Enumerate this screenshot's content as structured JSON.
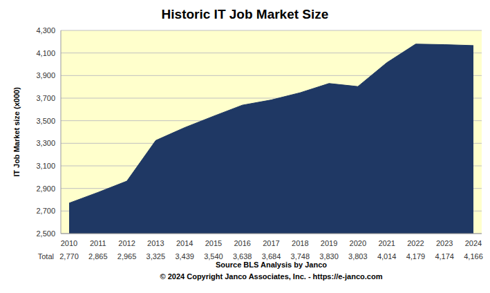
{
  "chart_data": {
    "type": "area",
    "title": "Historic IT Job Market Size",
    "y_label": "IT Job Market size (x000)",
    "x_label": "Source BLS Analysis by Janco",
    "annotations": [
      "© 2024 Copyright Janco Associates, Inc. - https://e-janco.com"
    ],
    "categories": [
      "2010",
      "2011",
      "2012",
      "2013",
      "2014",
      "2015",
      "2016",
      "2017",
      "2018",
      "2019",
      "2020",
      "2021",
      "2022",
      "2023",
      "2024"
    ],
    "series": [
      {
        "name": "Total",
        "color": "#1f3864",
        "values": [
          2770,
          2865,
          2965,
          3325,
          3439,
          3540,
          3638,
          3684,
          3748,
          3830,
          3803,
          4014,
          4179,
          4174,
          4166
        ],
        "value_labels": [
          "2,770",
          "2,865",
          "2,965",
          "3,325",
          "3,439",
          "3,540",
          "3,638",
          "3,684",
          "3,748",
          "3,830",
          "3,803",
          "4,014",
          "4,179",
          "4,174",
          "4,166"
        ]
      }
    ],
    "ylim": [
      2500,
      4300
    ],
    "yticks": [
      {
        "value": 2500,
        "label": "2,500"
      },
      {
        "value": 2700,
        "label": "2,700"
      },
      {
        "value": 2900,
        "label": "2,900"
      },
      {
        "value": 3100,
        "label": "3,100"
      },
      {
        "value": 3300,
        "label": "3,300"
      },
      {
        "value": 3500,
        "label": "3,500"
      },
      {
        "value": 3700,
        "label": "3,700"
      },
      {
        "value": 3900,
        "label": "3,900"
      },
      {
        "value": 4100,
        "label": "4,100"
      },
      {
        "value": 4300,
        "label": "4,300"
      }
    ],
    "grid": true
  }
}
